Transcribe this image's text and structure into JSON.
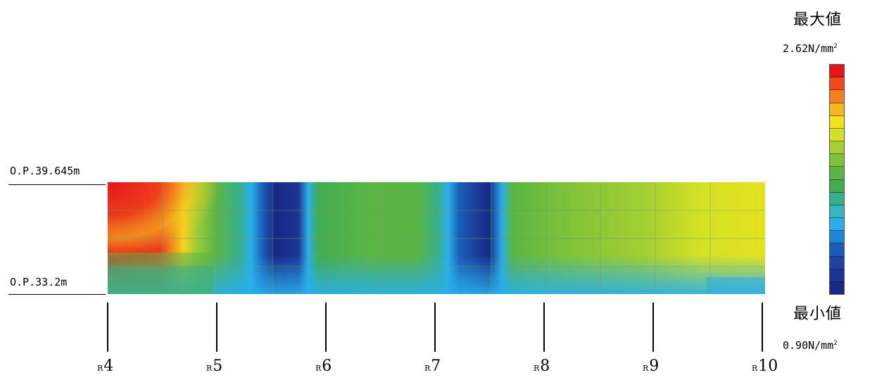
{
  "levels": {
    "top": "O.P.39.645m",
    "bottom": "O.P.33.2m"
  },
  "legend": {
    "max_title": "最大値",
    "max_value": "2.62N/mm",
    "min_title": "最小値",
    "min_value": "0.90N/mm",
    "unit_sup": "2",
    "colors": [
      "#e8151b",
      "#ee4a1c",
      "#f3801f",
      "#f5b81f",
      "#f2e21e",
      "#d3e126",
      "#a5cf32",
      "#7fc23a",
      "#5bb544",
      "#42ad50",
      "#36b08a",
      "#33b5c4",
      "#29aee9",
      "#1a86d5",
      "#1a5db8",
      "#1e43a6",
      "#1c3595",
      "#182884"
    ]
  },
  "axis": {
    "prefix": "R",
    "labels": [
      "4",
      "5",
      "6",
      "7",
      "8",
      "9",
      "10"
    ]
  }
}
